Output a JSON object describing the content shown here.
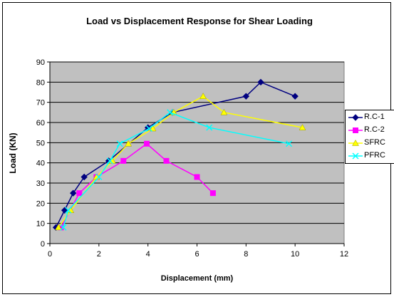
{
  "chart_data": {
    "type": "line",
    "title": "Load vs Displacement Response for Shear Loading",
    "xlabel": "Displacement (mm)",
    "ylabel": "Load (KN)",
    "xlim": [
      0,
      12
    ],
    "ylim": [
      0,
      90
    ],
    "x_ticks": [
      "0",
      "2",
      "4",
      "6",
      "8",
      "10",
      "12"
    ],
    "y_ticks": [
      "0",
      "10",
      "20",
      "30",
      "40",
      "50",
      "60",
      "70",
      "80",
      "90"
    ],
    "grid": "horizontal",
    "legend": "right",
    "series": [
      {
        "name": "R.C-1",
        "color": "#000080",
        "marker": "diamond",
        "points": [
          [
            0.25,
            8
          ],
          [
            0.6,
            16.5
          ],
          [
            0.95,
            25
          ],
          [
            1.4,
            33
          ],
          [
            2.4,
            41
          ],
          [
            4.0,
            57.5
          ],
          [
            5.0,
            65
          ],
          [
            8.0,
            73
          ],
          [
            8.6,
            80
          ],
          [
            10.0,
            73
          ]
        ]
      },
      {
        "name": "R.C-2",
        "color": "#ff00ff",
        "marker": "square",
        "points": [
          [
            0.45,
            8
          ],
          [
            1.2,
            25
          ],
          [
            1.9,
            33
          ],
          [
            3.0,
            41
          ],
          [
            3.95,
            49.5
          ],
          [
            4.75,
            41
          ],
          [
            6.0,
            33
          ],
          [
            6.65,
            25
          ]
        ]
      },
      {
        "name": "SFRC",
        "color": "#ffff00",
        "marker": "triangle",
        "points": [
          [
            0.35,
            8
          ],
          [
            0.85,
            16.5
          ],
          [
            1.9,
            33
          ],
          [
            2.55,
            41
          ],
          [
            3.2,
            49.5
          ],
          [
            4.2,
            57
          ],
          [
            5.05,
            65
          ],
          [
            6.25,
            73
          ],
          [
            7.1,
            65
          ],
          [
            10.3,
            57.5
          ]
        ]
      },
      {
        "name": "PFRC",
        "color": "#00ffff",
        "marker": "x",
        "points": [
          [
            0.55,
            8
          ],
          [
            0.75,
            16.5
          ],
          [
            2.0,
            33
          ],
          [
            2.45,
            41
          ],
          [
            2.85,
            49.5
          ],
          [
            4.05,
            57
          ],
          [
            4.9,
            65
          ],
          [
            6.5,
            57.5
          ],
          [
            9.75,
            49.5
          ]
        ]
      }
    ]
  }
}
